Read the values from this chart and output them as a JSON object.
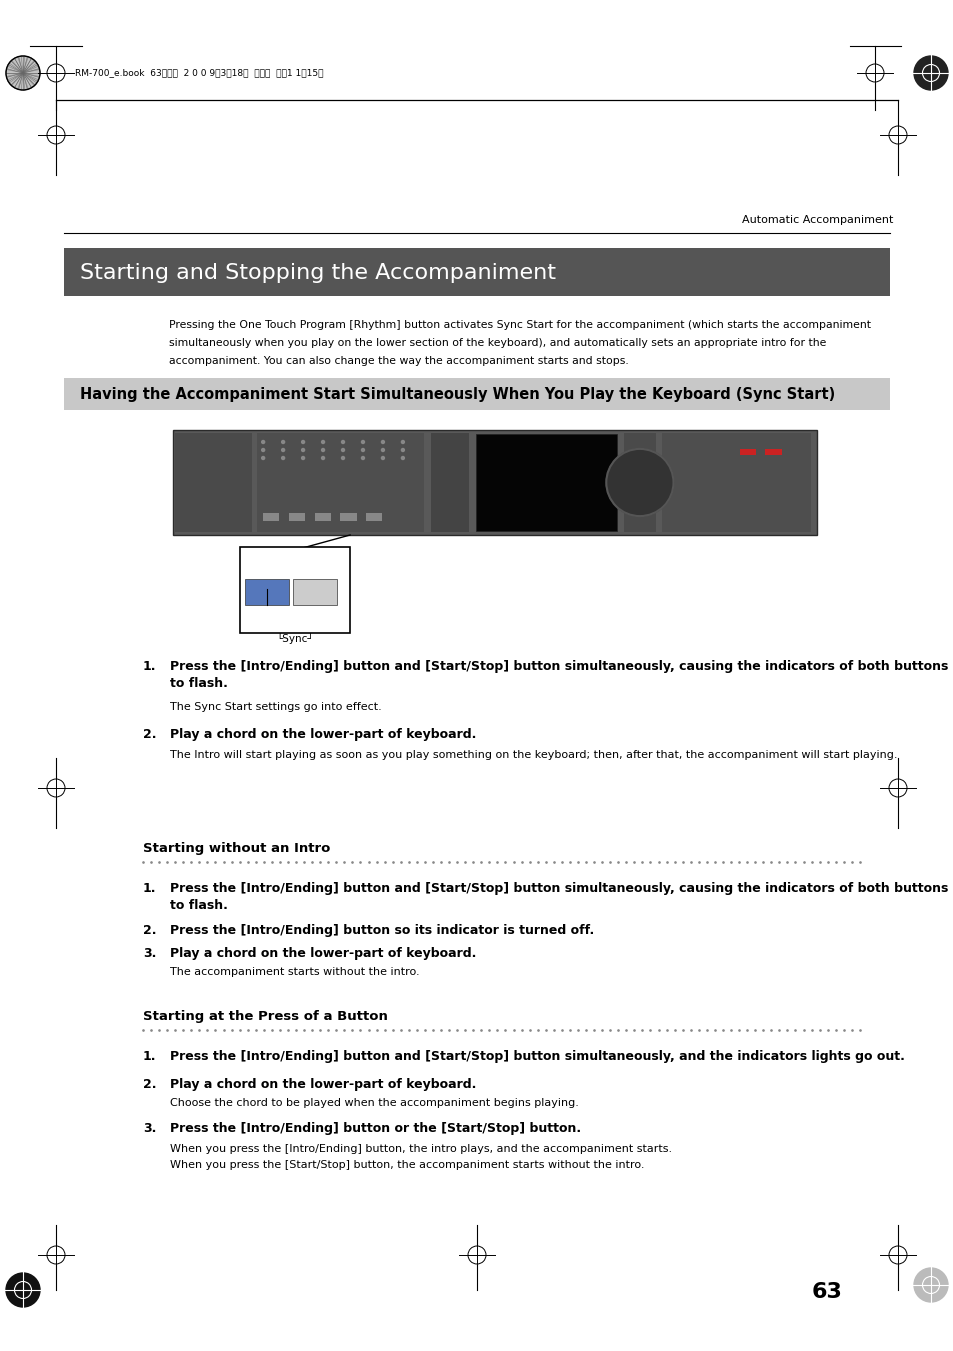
{
  "page_width": 9.54,
  "page_height": 13.51,
  "bg_color": "#ffffff",
  "header_text": "RM-700_e.book  63ページ  2 0 0 9年3月18日  水曜日  午前1 1時15分",
  "section_label": "Automatic Accompaniment",
  "main_title": "Starting and Stopping the Accompaniment",
  "main_title_bg": "#555555",
  "main_title_color": "#ffffff",
  "intro_text_1": "Pressing the One Touch Program [Rhythm] button activates Sync Start for the accompaniment (which starts the accompaniment",
  "intro_text_2": "simultaneously when you play on the lower section of the keyboard), and automatically sets an appropriate intro for the",
  "intro_text_3": "accompaniment. You can also change the way the accompaniment starts and stops.",
  "sub_title": "Having the Accompaniment Start Simultaneously When You Play the Keyboard (Sync Start)",
  "sub_title_bg": "#c8c8c8",
  "section2_title": "Starting without an Intro",
  "section3_title": "Starting at the Press of a Button",
  "step1_bold_1": "Press the [Intro/Ending] button and [Start/Stop] button simultaneously, causing the indicators of both buttons",
  "step1_bold_2": "to flash.",
  "step1_normal": "The Sync Start settings go into effect.",
  "step2_bold": "Play a chord on the lower-part of keyboard.",
  "step2_normal": "The Intro will start playing as soon as you play something on the keyboard; then, after that, the accompaniment will start playing.",
  "s2_step1_bold_1": "Press the [Intro/Ending] button and [Start/Stop] button simultaneously, causing the indicators of both buttons",
  "s2_step1_bold_2": "to flash.",
  "s2_step2_bold": "Press the [Intro/Ending] button so its indicator is turned off.",
  "s2_step3_bold": "Play a chord on the lower-part of keyboard.",
  "s2_step3_normal": "The accompaniment starts without the intro.",
  "s3_step1_bold": "Press the [Intro/Ending] button and [Start/Stop] button simultaneously, and the indicators lights go out.",
  "s3_step2_bold": "Play a chord on the lower-part of keyboard.",
  "s3_step2_normal": "Choose the chord to be played when the accompaniment begins playing.",
  "s3_step3_bold": "Press the [Intro/Ending] button or the [Start/Stop] button.",
  "s3_step3_normal1": "When you press the [Intro/Ending] button, the intro plays, and the accompaniment starts.",
  "s3_step3_normal2": "When you press the [Start/Stop] button, the accompaniment starts without the intro.",
  "page_number": "63"
}
